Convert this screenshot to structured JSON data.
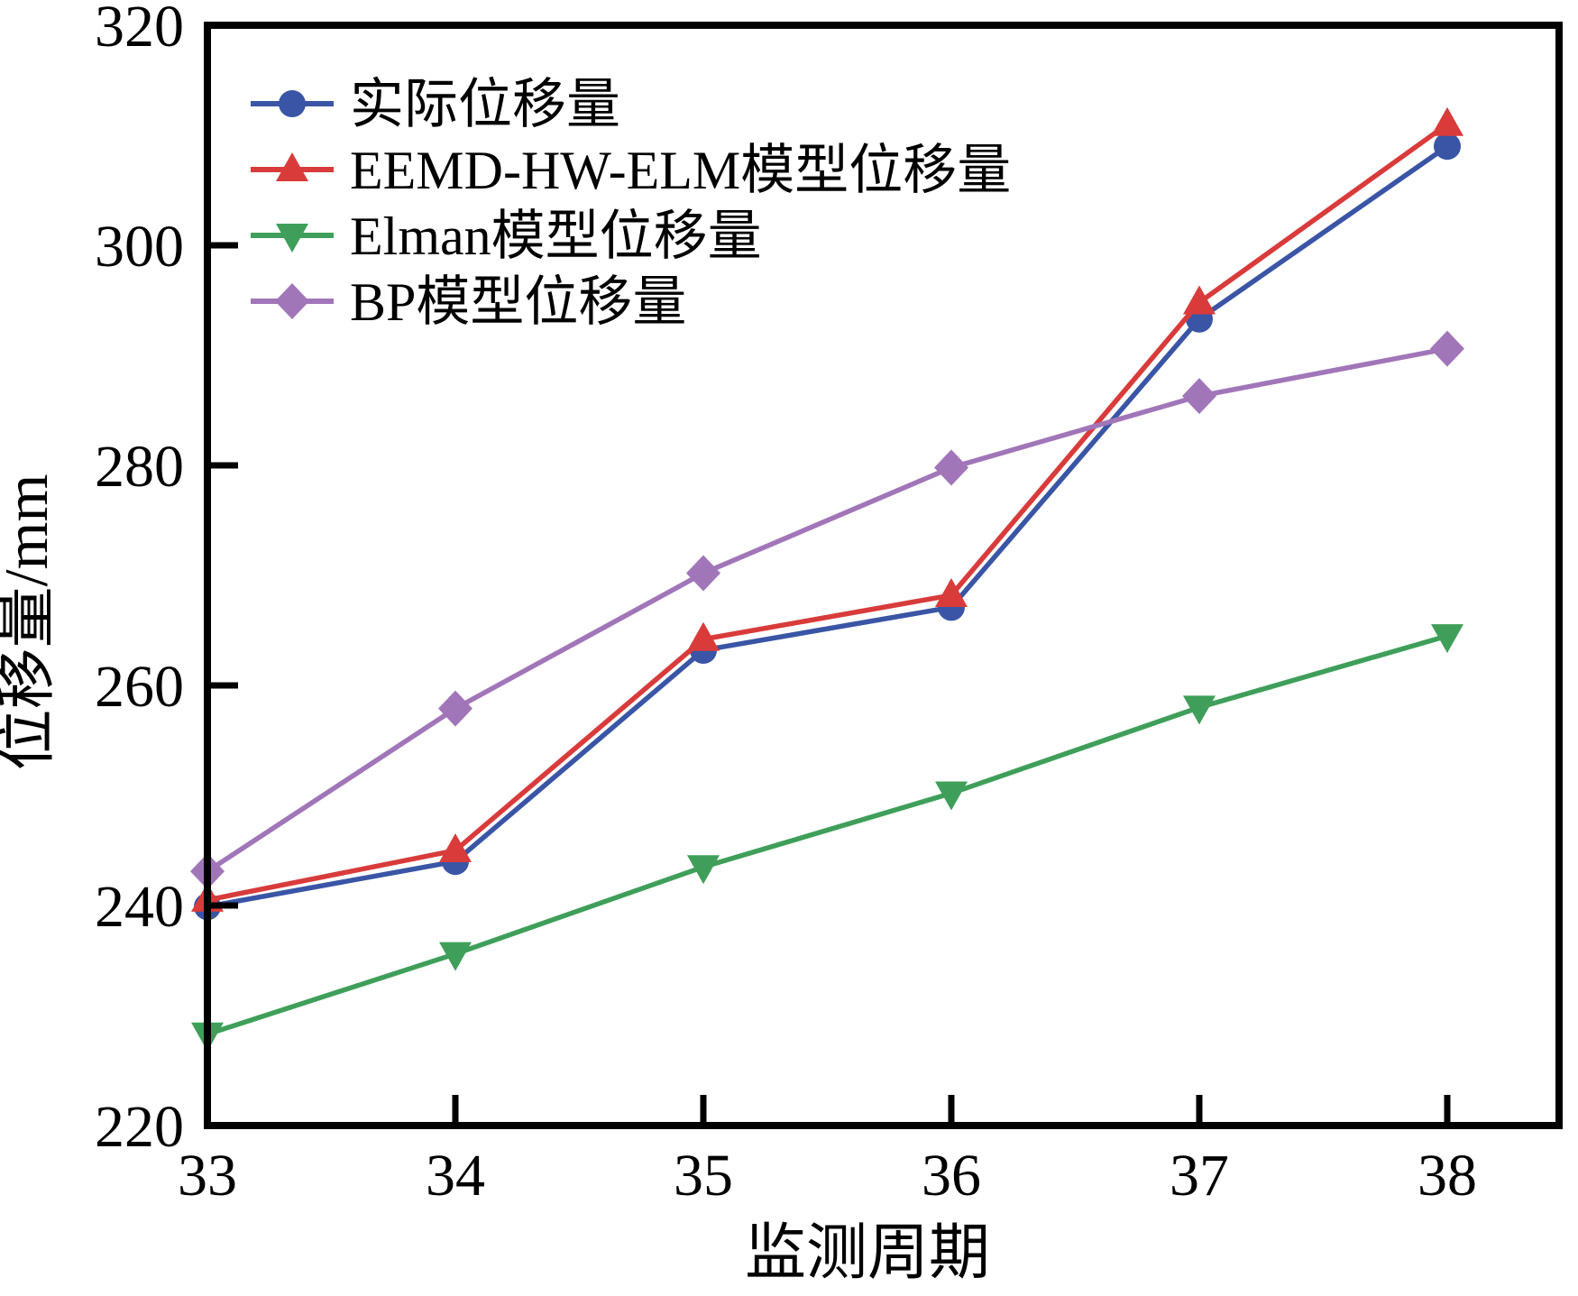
{
  "figure_title": "",
  "chart_data": {
    "type": "line",
    "x": [
      33,
      34,
      35,
      36,
      37,
      38
    ],
    "series": [
      {
        "name": "实际位移量",
        "marker": "circle",
        "color": "#3A55A5",
        "values": [
          239.9,
          244.0,
          263.2,
          267.1,
          293.3,
          309.0
        ]
      },
      {
        "name": "EEMD-HW-ELM模型位移量",
        "marker": "triangle-up",
        "color": "#D93B3B",
        "values": [
          240.5,
          245.0,
          264.2,
          268.2,
          294.8,
          311.0
        ]
      },
      {
        "name": "Elman模型位移量",
        "marker": "triangle-down",
        "color": "#3F9F5A",
        "values": [
          228.3,
          235.6,
          243.5,
          250.2,
          258.0,
          264.5
        ]
      },
      {
        "name": "BP模型位移量",
        "marker": "diamond",
        "color": "#A176B9",
        "values": [
          243.1,
          257.9,
          270.2,
          279.8,
          286.3,
          290.6
        ]
      }
    ],
    "xlabel": "监测周期",
    "ylabel": "位移量/mm",
    "xticks": [
      33,
      34,
      35,
      36,
      37,
      38
    ],
    "yticks": [
      220,
      240,
      260,
      280,
      300,
      320
    ],
    "xlim": [
      33,
      38.45
    ],
    "ylim": [
      220,
      320
    ],
    "grid": false,
    "legend_position": "upper-left-inside",
    "axis_color": "#000000"
  }
}
